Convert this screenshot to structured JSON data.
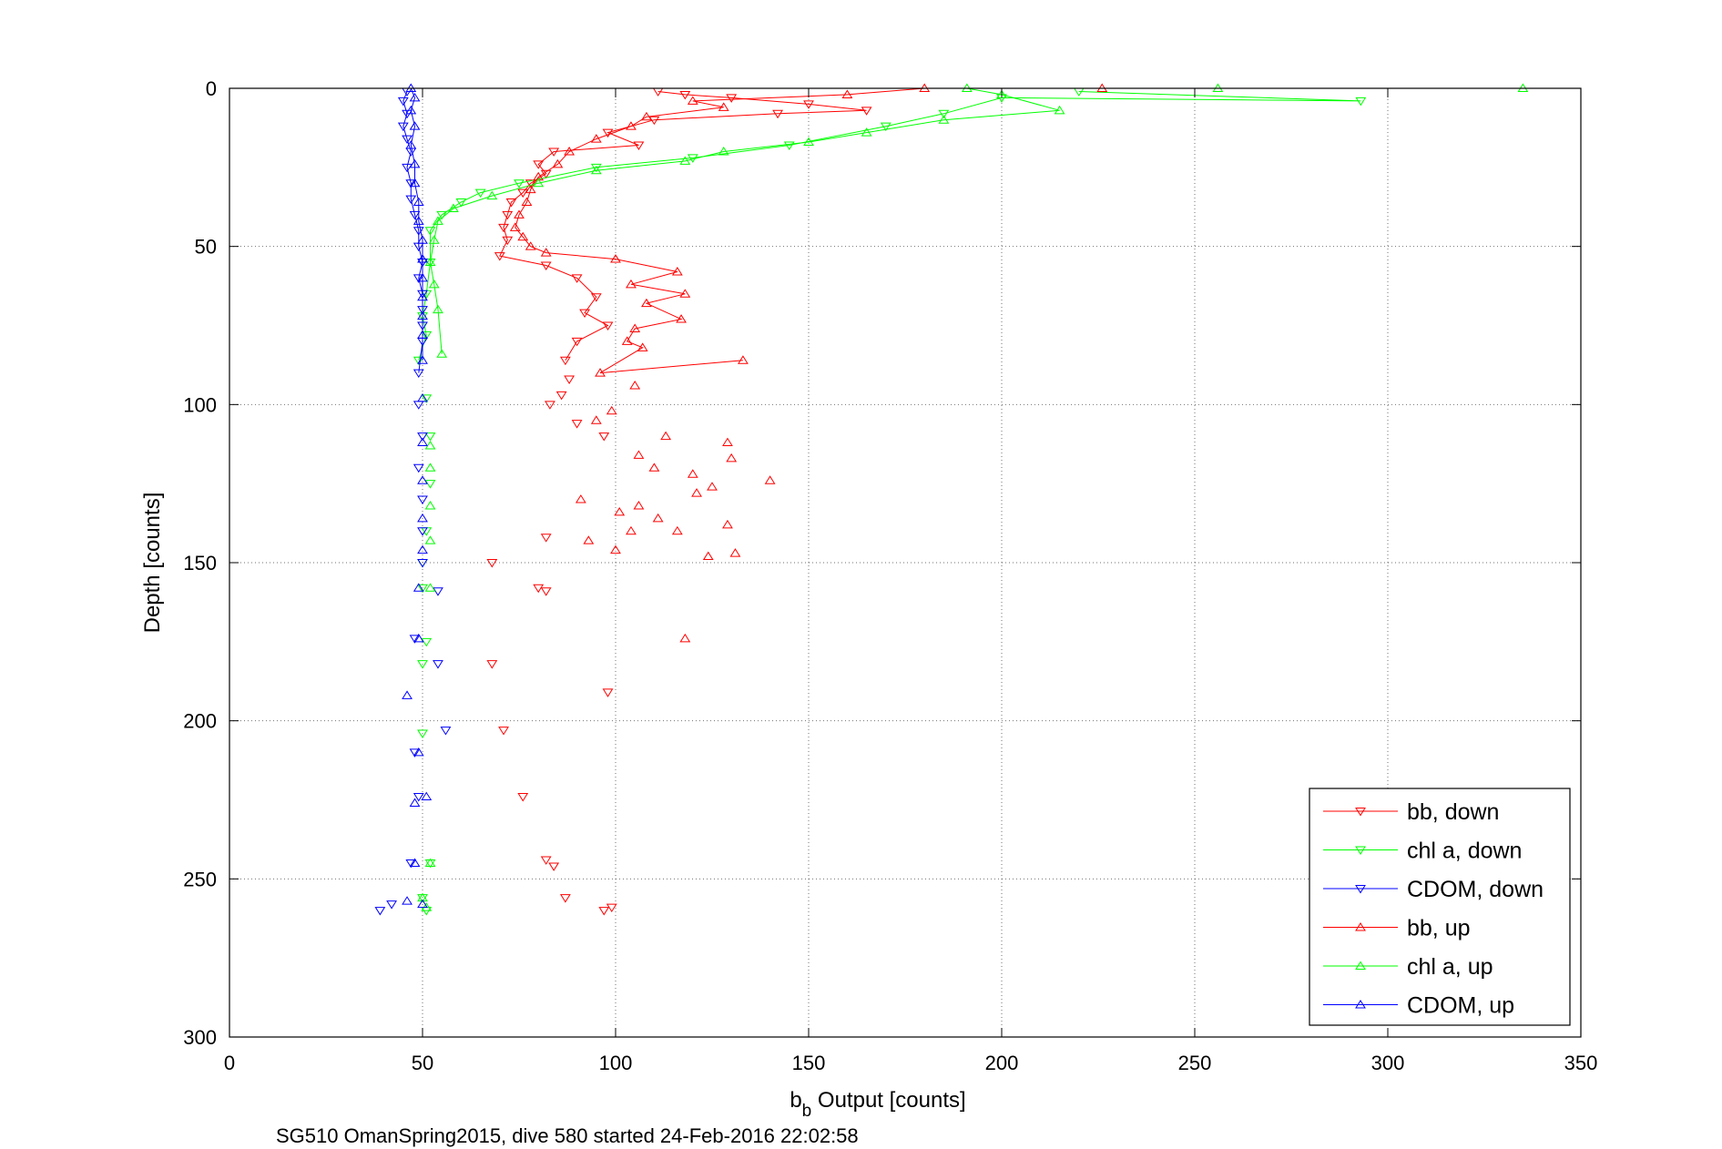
{
  "chart_data": {
    "type": "scatter",
    "xlabel_main": "b",
    "xlabel_sub": "b",
    "xlabel_rest": " Output [counts]",
    "ylabel": "Depth [counts]",
    "caption": "SG510 OmanSpring2015, dive 580 started 24-Feb-2016 22:02:58",
    "xlim": [
      0,
      350
    ],
    "ylim": [
      0,
      300
    ],
    "y_reversed": true,
    "grid": true,
    "legend_position": "bottom-right",
    "xticks": [
      "0",
      "50",
      "100",
      "150",
      "200",
      "250",
      "300",
      "350"
    ],
    "yticks": [
      "0",
      "50",
      "100",
      "150",
      "200",
      "250",
      "300"
    ],
    "series": [
      {
        "name": "bb, down",
        "color": "#ff0000",
        "marker": "triangle-down",
        "lines": true,
        "points": [
          [
            111,
            1
          ],
          [
            118,
            2
          ],
          [
            130,
            3
          ],
          [
            150,
            5
          ],
          [
            165,
            7
          ],
          [
            142,
            8
          ],
          [
            110,
            10
          ],
          [
            98,
            14
          ],
          [
            106,
            18
          ],
          [
            84,
            20
          ],
          [
            80,
            24
          ],
          [
            82,
            27
          ],
          [
            78,
            30
          ],
          [
            76,
            33
          ],
          [
            73,
            36
          ],
          [
            72,
            40
          ],
          [
            71,
            44
          ],
          [
            72,
            48
          ],
          [
            70,
            53
          ],
          [
            82,
            56
          ],
          [
            90,
            60
          ],
          [
            95,
            66
          ],
          [
            92,
            71
          ],
          [
            98,
            75
          ],
          [
            90,
            80
          ],
          [
            87,
            86
          ],
          [
            88,
            92
          ],
          [
            86,
            97
          ],
          [
            83,
            100
          ],
          [
            90,
            106
          ],
          [
            97,
            110
          ],
          [
            82,
            142
          ],
          [
            68,
            150
          ],
          [
            80,
            158
          ],
          [
            82,
            159
          ],
          [
            68,
            182
          ],
          [
            98,
            191
          ],
          [
            71,
            203
          ],
          [
            76,
            224
          ],
          [
            82,
            244
          ],
          [
            84,
            246
          ],
          [
            87,
            256
          ],
          [
            97,
            260
          ],
          [
            99,
            259
          ]
        ]
      },
      {
        "name": "chl a, down",
        "color": "#00ff00",
        "marker": "triangle-down",
        "lines": true,
        "points": [
          [
            220,
            1
          ],
          [
            293,
            4
          ],
          [
            200,
            3
          ],
          [
            185,
            8
          ],
          [
            170,
            12
          ],
          [
            145,
            18
          ],
          [
            120,
            22
          ],
          [
            95,
            25
          ],
          [
            75,
            30
          ],
          [
            65,
            33
          ],
          [
            60,
            36
          ],
          [
            55,
            40
          ],
          [
            52,
            45
          ],
          [
            52,
            55
          ],
          [
            51,
            65
          ],
          [
            50,
            72
          ],
          [
            51,
            78
          ],
          [
            49,
            86
          ],
          [
            51,
            98
          ],
          [
            52,
            110
          ],
          [
            52,
            125
          ],
          [
            51,
            140
          ],
          [
            50,
            150
          ],
          [
            50,
            158
          ],
          [
            51,
            175
          ],
          [
            50,
            182
          ],
          [
            50,
            204
          ],
          [
            52,
            245
          ],
          [
            50,
            256
          ],
          [
            51,
            260
          ]
        ]
      },
      {
        "name": "CDOM, down",
        "color": "#0000ff",
        "marker": "triangle-down",
        "lines": true,
        "points": [
          [
            46,
            1
          ],
          [
            45,
            4
          ],
          [
            46,
            8
          ],
          [
            45,
            12
          ],
          [
            46,
            16
          ],
          [
            47,
            20
          ],
          [
            46,
            25
          ],
          [
            47,
            30
          ],
          [
            47,
            35
          ],
          [
            48,
            40
          ],
          [
            49,
            45
          ],
          [
            49,
            50
          ],
          [
            50,
            55
          ],
          [
            49,
            60
          ],
          [
            50,
            65
          ],
          [
            50,
            70
          ],
          [
            50,
            75
          ],
          [
            50,
            80
          ],
          [
            49,
            90
          ],
          [
            49,
            100
          ],
          [
            50,
            110
          ],
          [
            49,
            120
          ],
          [
            50,
            130
          ],
          [
            50,
            140
          ],
          [
            50,
            150
          ],
          [
            54,
            159
          ],
          [
            48,
            174
          ],
          [
            54,
            182
          ],
          [
            56,
            203
          ],
          [
            48,
            210
          ],
          [
            49,
            224
          ],
          [
            47,
            245
          ],
          [
            42,
            258
          ],
          [
            39,
            260
          ]
        ]
      },
      {
        "name": "bb, up",
        "color": "#ff0000",
        "marker": "triangle-up",
        "lines": true,
        "points": [
          [
            226,
            0
          ],
          [
            180,
            0
          ],
          [
            160,
            2
          ],
          [
            120,
            4
          ],
          [
            128,
            6
          ],
          [
            108,
            9
          ],
          [
            104,
            12
          ],
          [
            95,
            16
          ],
          [
            88,
            20
          ],
          [
            85,
            24
          ],
          [
            80,
            28
          ],
          [
            78,
            32
          ],
          [
            77,
            36
          ],
          [
            75,
            40
          ],
          [
            74,
            44
          ],
          [
            76,
            47
          ],
          [
            78,
            50
          ],
          [
            82,
            52
          ],
          [
            100,
            54
          ],
          [
            116,
            58
          ],
          [
            104,
            62
          ],
          [
            118,
            65
          ],
          [
            108,
            68
          ],
          [
            117,
            73
          ],
          [
            105,
            76
          ],
          [
            103,
            80
          ],
          [
            107,
            82
          ],
          [
            96,
            90
          ],
          [
            133,
            86
          ],
          [
            105,
            94
          ],
          [
            99,
            102
          ],
          [
            95,
            105
          ],
          [
            113,
            110
          ],
          [
            129,
            112
          ],
          [
            106,
            116
          ],
          [
            130,
            117
          ],
          [
            110,
            120
          ],
          [
            120,
            122
          ],
          [
            125,
            126
          ],
          [
            140,
            124
          ],
          [
            121,
            128
          ],
          [
            106,
            132
          ],
          [
            91,
            130
          ],
          [
            101,
            134
          ],
          [
            111,
            136
          ],
          [
            116,
            140
          ],
          [
            129,
            138
          ],
          [
            104,
            140
          ],
          [
            93,
            143
          ],
          [
            100,
            146
          ],
          [
            131,
            147
          ],
          [
            124,
            148
          ],
          [
            118,
            174
          ]
        ]
      },
      {
        "name": "chl a, up",
        "color": "#00ff00",
        "marker": "triangle-up",
        "lines": true,
        "points": [
          [
            335,
            0
          ],
          [
            256,
            0
          ],
          [
            191,
            0
          ],
          [
            200,
            2
          ],
          [
            215,
            7
          ],
          [
            185,
            10
          ],
          [
            165,
            14
          ],
          [
            150,
            17
          ],
          [
            128,
            20
          ],
          [
            118,
            23
          ],
          [
            95,
            26
          ],
          [
            80,
            30
          ],
          [
            68,
            34
          ],
          [
            58,
            38
          ],
          [
            54,
            42
          ],
          [
            53,
            48
          ],
          [
            52,
            55
          ],
          [
            53,
            62
          ],
          [
            54,
            70
          ],
          [
            55,
            84
          ],
          [
            52,
            113
          ],
          [
            52,
            120
          ],
          [
            52,
            132
          ],
          [
            52,
            143
          ],
          [
            52,
            158
          ],
          [
            52,
            245
          ],
          [
            50,
            256
          ],
          [
            51,
            259
          ]
        ]
      },
      {
        "name": "CDOM, up",
        "color": "#0000ff",
        "marker": "triangle-up",
        "lines": true,
        "points": [
          [
            47,
            0
          ],
          [
            48,
            3
          ],
          [
            47,
            7
          ],
          [
            48,
            12
          ],
          [
            47,
            18
          ],
          [
            48,
            24
          ],
          [
            48,
            30
          ],
          [
            49,
            36
          ],
          [
            49,
            42
          ],
          [
            50,
            48
          ],
          [
            50,
            54
          ],
          [
            50,
            60
          ],
          [
            50,
            66
          ],
          [
            50,
            72
          ],
          [
            50,
            78
          ],
          [
            50,
            86
          ],
          [
            50,
            98
          ],
          [
            50,
            112
          ],
          [
            50,
            124
          ],
          [
            50,
            136
          ],
          [
            50,
            146
          ],
          [
            49,
            158
          ],
          [
            49,
            174
          ],
          [
            46,
            192
          ],
          [
            49,
            210
          ],
          [
            51,
            224
          ],
          [
            48,
            226
          ],
          [
            48,
            245
          ],
          [
            46,
            257
          ],
          [
            50,
            258
          ]
        ]
      }
    ]
  }
}
